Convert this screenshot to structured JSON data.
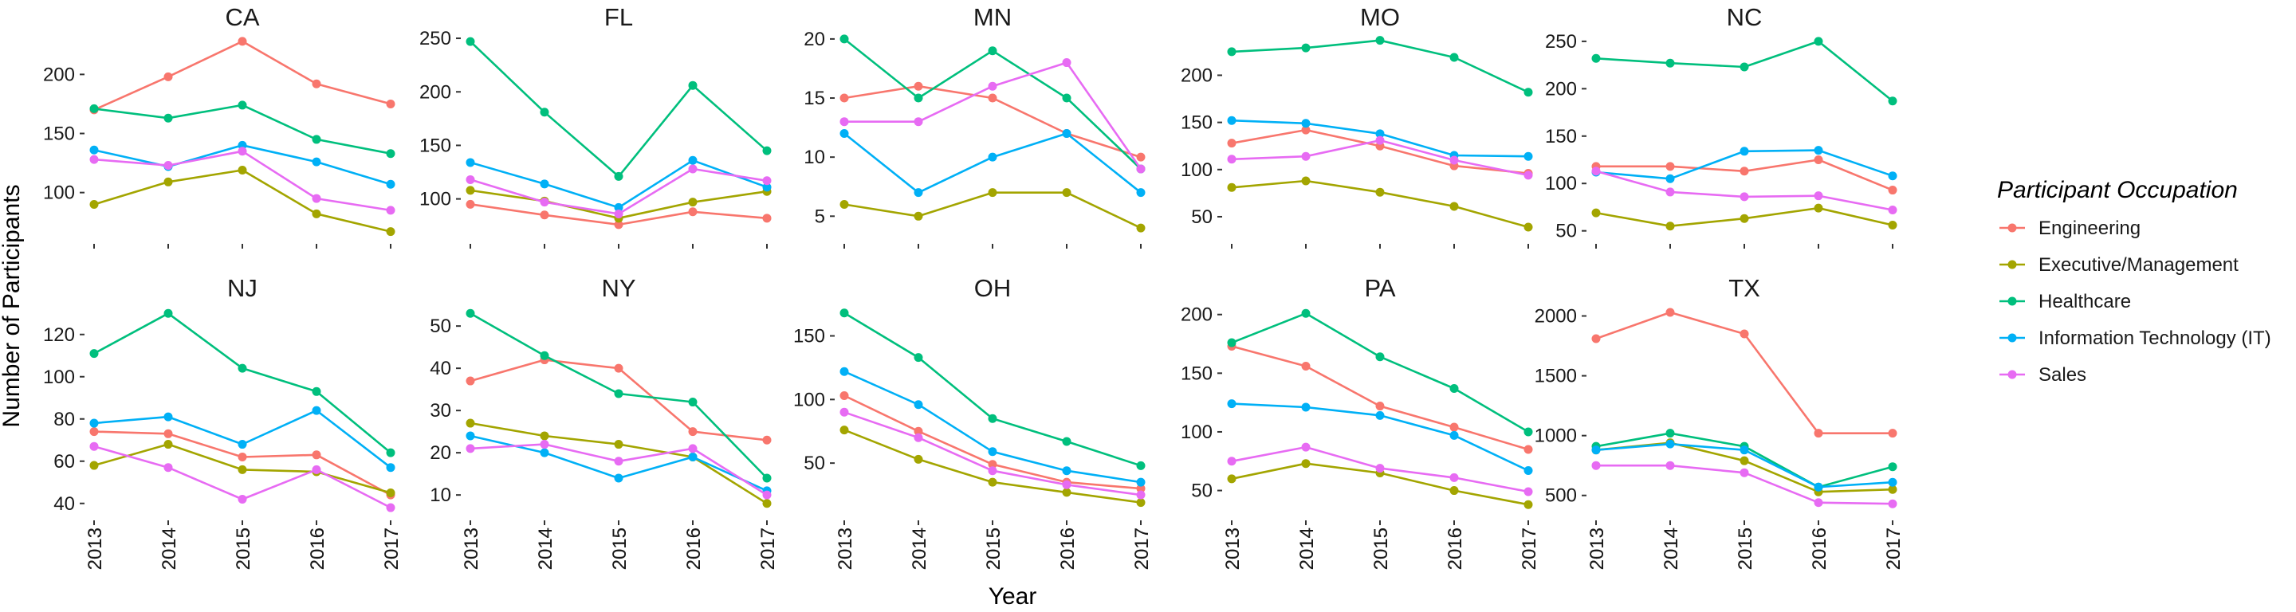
{
  "chart_data": {
    "type": "line",
    "layout": "facet",
    "xlabel": "Year",
    "ylabel": "Number of Participants",
    "x": [
      "2013",
      "2014",
      "2015",
      "2016",
      "2017"
    ],
    "legend": {
      "title": "Participant Occupation",
      "placement": "right",
      "entries": [
        {
          "name": "Engineering",
          "color": "#F8766D"
        },
        {
          "name": "Executive/Management",
          "color": "#A3A500"
        },
        {
          "name": "Healthcare",
          "color": "#00BF7D"
        },
        {
          "name": "Information Technology (IT)",
          "color": "#00B0F6"
        },
        {
          "name": "Sales",
          "color": "#E76BF3"
        }
      ]
    },
    "panels": [
      {
        "title": "CA",
        "ylim": [
          62,
          236
        ],
        "yticks": [
          100,
          150,
          200
        ],
        "series": [
          {
            "name": "Engineering",
            "values": [
              170,
              198,
              228,
              192,
              175
            ]
          },
          {
            "name": "Executive/Management",
            "values": [
              90,
              109,
              119,
              82,
              67
            ]
          },
          {
            "name": "Healthcare",
            "values": [
              171,
              163,
              174,
              145,
              133
            ]
          },
          {
            "name": "Information Technology (IT)",
            "values": [
              136,
              122,
              140,
              126,
              107
            ]
          },
          {
            "name": "Sales",
            "values": [
              128,
              123,
              135,
              95,
              85
            ]
          }
        ]
      },
      {
        "title": "FL",
        "ylim": [
          64,
          256
        ],
        "yticks": [
          100,
          150,
          200,
          250
        ],
        "series": [
          {
            "name": "Engineering",
            "values": [
              95,
              85,
              76,
              88,
              82
            ]
          },
          {
            "name": "Executive/Management",
            "values": [
              108,
              98,
              82,
              97,
              107
            ]
          },
          {
            "name": "Healthcare",
            "values": [
              247,
              181,
              121,
              206,
              145
            ]
          },
          {
            "name": "Information Technology (IT)",
            "values": [
              134,
              114,
              92,
              136,
              111
            ]
          },
          {
            "name": "Sales",
            "values": [
              118,
              97,
              86,
              128,
              117
            ]
          }
        ]
      },
      {
        "title": "MN",
        "ylim": [
          3.2,
          20.6
        ],
        "yticks": [
          5,
          10,
          15,
          20
        ],
        "series": [
          {
            "name": "Engineering",
            "values": [
              15,
              16,
              15,
              12,
              10
            ]
          },
          {
            "name": "Executive/Management",
            "values": [
              6,
              5,
              7,
              7,
              4
            ]
          },
          {
            "name": "Healthcare",
            "values": [
              20,
              15,
              19,
              15,
              9
            ]
          },
          {
            "name": "Information Technology (IT)",
            "values": [
              12,
              7,
              10,
              12,
              7
            ]
          },
          {
            "name": "Sales",
            "values": [
              13,
              13,
              16,
              18,
              9
            ]
          }
        ]
      },
      {
        "title": "MO",
        "ylim": [
          28,
          246
        ],
        "yticks": [
          50,
          100,
          150,
          200
        ],
        "series": [
          {
            "name": "Engineering",
            "values": [
              128,
              142,
              125,
              104,
              96
            ]
          },
          {
            "name": "Executive/Management",
            "values": [
              81,
              88,
              76,
              61,
              39
            ]
          },
          {
            "name": "Healthcare",
            "values": [
              225,
              229,
              237,
              219,
              182
            ]
          },
          {
            "name": "Information Technology (IT)",
            "values": [
              152,
              149,
              138,
              115,
              114
            ]
          },
          {
            "name": "Sales",
            "values": [
              111,
              114,
              131,
              110,
              94
            ]
          }
        ]
      },
      {
        "title": "NC",
        "ylim": [
          43,
          260
        ],
        "yticks": [
          50,
          100,
          150,
          200,
          250
        ],
        "series": [
          {
            "name": "Engineering",
            "values": [
              118,
              118,
              113,
              125,
              93
            ]
          },
          {
            "name": "Executive/Management",
            "values": [
              69,
              55,
              63,
              74,
              56
            ]
          },
          {
            "name": "Healthcare",
            "values": [
              232,
              227,
              223,
              250,
              187
            ]
          },
          {
            "name": "Information Technology (IT)",
            "values": [
              112,
              105,
              134,
              135,
              108
            ]
          },
          {
            "name": "Sales",
            "values": [
              113,
              91,
              86,
              87,
              72
            ]
          }
        ]
      },
      {
        "title": "NJ",
        "ylim": [
          35,
          135
        ],
        "yticks": [
          40,
          60,
          80,
          100,
          120
        ],
        "series": [
          {
            "name": "Engineering",
            "values": [
              74,
              73,
              62,
              63,
              44
            ]
          },
          {
            "name": "Executive/Management",
            "values": [
              58,
              68,
              56,
              55,
              45
            ]
          },
          {
            "name": "Healthcare",
            "values": [
              111,
              130,
              104,
              93,
              64
            ]
          },
          {
            "name": "Information Technology (IT)",
            "values": [
              78,
              81,
              68,
              84,
              57
            ]
          },
          {
            "name": "Sales",
            "values": [
              67,
              57,
              42,
              56,
              38
            ]
          }
        ]
      },
      {
        "title": "NY",
        "ylim": [
          5.5,
          55.5
        ],
        "yticks": [
          10,
          20,
          30,
          40,
          50
        ],
        "series": [
          {
            "name": "Engineering",
            "values": [
              37,
              42,
              40,
              25,
              23
            ]
          },
          {
            "name": "Executive/Management",
            "values": [
              27,
              24,
              22,
              19,
              8
            ]
          },
          {
            "name": "Healthcare",
            "values": [
              53,
              43,
              34,
              32,
              14
            ]
          },
          {
            "name": "Information Technology (IT)",
            "values": [
              24,
              20,
              14,
              19,
              11
            ]
          },
          {
            "name": "Sales",
            "values": [
              21,
              22,
              18,
              21,
              10
            ]
          }
        ]
      },
      {
        "title": "OH",
        "ylim": [
          10,
          176
        ],
        "yticks": [
          50,
          100,
          150
        ],
        "series": [
          {
            "name": "Engineering",
            "values": [
              103,
              75,
              49,
              35,
              30
            ]
          },
          {
            "name": "Executive/Management",
            "values": [
              76,
              53,
              35,
              27,
              19
            ]
          },
          {
            "name": "Healthcare",
            "values": [
              168,
              133,
              85,
              67,
              48
            ]
          },
          {
            "name": "Information Technology (IT)",
            "values": [
              122,
              96,
              59,
              44,
              35
            ]
          },
          {
            "name": "Sales",
            "values": [
              90,
              70,
              44,
              33,
              25
            ]
          }
        ]
      },
      {
        "title": "PA",
        "ylim": [
          30,
          210
        ],
        "yticks": [
          50,
          100,
          150,
          200
        ],
        "series": [
          {
            "name": "Engineering",
            "values": [
              173,
              156,
              122,
              104,
              85
            ]
          },
          {
            "name": "Executive/Management",
            "values": [
              60,
              73,
              65,
              50,
              38
            ]
          },
          {
            "name": "Healthcare",
            "values": [
              176,
              201,
              164,
              137,
              100
            ]
          },
          {
            "name": "Information Technology (IT)",
            "values": [
              124,
              121,
              114,
              97,
              67
            ]
          },
          {
            "name": "Sales",
            "values": [
              75,
              87,
              69,
              61,
              49
            ]
          }
        ]
      },
      {
        "title": "TX",
        "ylim": [
          345,
          2110
        ],
        "yticks": [
          500,
          1000,
          1500,
          2000
        ],
        "series": [
          {
            "name": "Engineering",
            "values": [
              1810,
              2030,
              1850,
              1020,
              1020
            ]
          },
          {
            "name": "Executive/Management",
            "values": [
              880,
              940,
              790,
              530,
              550
            ]
          },
          {
            "name": "Healthcare",
            "values": [
              910,
              1020,
              910,
              570,
              740
            ]
          },
          {
            "name": "Information Technology (IT)",
            "values": [
              880,
              930,
              880,
              570,
              610
            ]
          },
          {
            "name": "Sales",
            "values": [
              750,
              750,
              690,
              440,
              430
            ]
          }
        ]
      }
    ]
  }
}
